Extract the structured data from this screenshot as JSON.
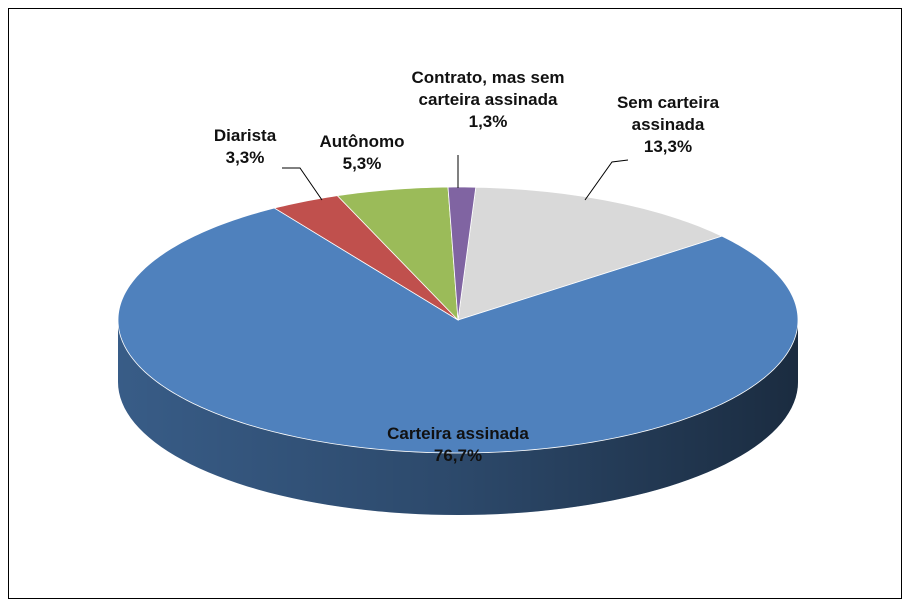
{
  "chart_data": {
    "type": "pie",
    "categories": [
      "Sem carteira assinada",
      "Carteira assinada",
      "Diarista",
      "Autônomo",
      "Contrato, mas sem carteira assinada"
    ],
    "values": [
      13.3,
      76.7,
      3.3,
      5.3,
      1.3
    ],
    "value_labels": [
      "13,3%",
      "76,7%",
      "3,3%",
      "5,3%",
      "1,3%"
    ],
    "colors": [
      "#d9d9d9",
      "#4f81bd",
      "#c0504d",
      "#9bbb59",
      "#8064a2"
    ]
  }
}
